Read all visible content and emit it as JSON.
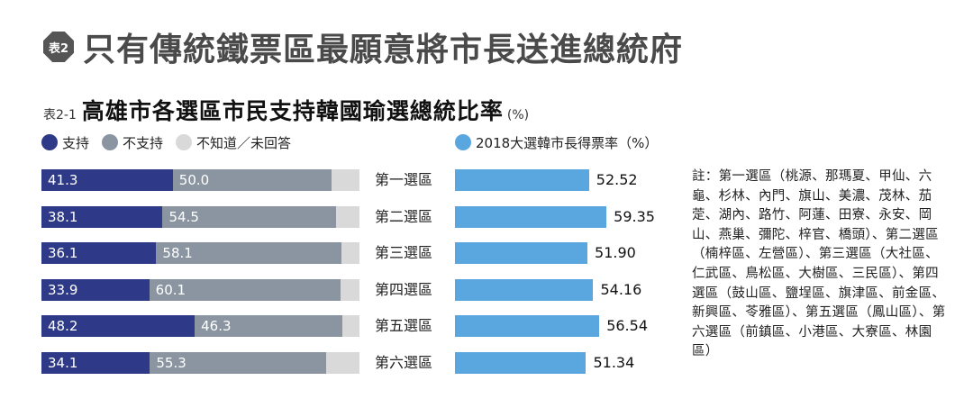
{
  "header": {
    "badge": "表2",
    "title": "只有傳統鐵票區最願意將市長送進總統府"
  },
  "subheader": {
    "tag": "表2-1",
    "title": "高雄市各選區市民支持韓國瑜選總統比率",
    "unit": "(%)"
  },
  "legend": {
    "items": [
      {
        "label": "支持",
        "color": "#2e3a87"
      },
      {
        "label": "不支持",
        "color": "#8a95a1"
      },
      {
        "label": "不知道／未回答",
        "color": "#d9d9d9"
      }
    ],
    "right": {
      "label": "2018大選韓市長得票率（%）",
      "color": "#5aa7e0"
    }
  },
  "chart_data": [
    {
      "type": "bar",
      "stacked": true,
      "orientation": "horizontal",
      "categories": [
        "第一選區",
        "第二選區",
        "第三選區",
        "第四選區",
        "第五選區",
        "第六選區"
      ],
      "series": [
        {
          "name": "支持",
          "color": "#2e3a87",
          "values": [
            41.3,
            38.1,
            36.1,
            33.9,
            48.2,
            34.1
          ]
        },
        {
          "name": "不支持",
          "color": "#8a95a1",
          "values": [
            50.0,
            54.5,
            58.1,
            60.1,
            46.3,
            55.3
          ]
        },
        {
          "name": "不知道／未回答",
          "color": "#d9d9d9",
          "values": [
            8.7,
            7.4,
            5.8,
            6.0,
            5.5,
            10.6
          ]
        }
      ],
      "value_labels": [
        [
          "41.3",
          "50.0"
        ],
        [
          "38.1",
          "54.5"
        ],
        [
          "36.1",
          "58.1"
        ],
        [
          "33.9",
          "60.1"
        ],
        [
          "48.2",
          "46.3"
        ],
        [
          "34.1",
          "55.3"
        ]
      ],
      "xlim": [
        0,
        100
      ]
    },
    {
      "type": "bar",
      "orientation": "horizontal",
      "categories": [
        "第一選區",
        "第二選區",
        "第三選區",
        "第四選區",
        "第五選區",
        "第六選區"
      ],
      "series": [
        {
          "name": "2018大選韓市長得票率（%）",
          "color": "#5aa7e0",
          "values": [
            52.52,
            59.35,
            51.9,
            54.16,
            56.54,
            51.34
          ]
        }
      ],
      "value_labels": [
        "52.52",
        "59.35",
        "51.90",
        "54.16",
        "56.54",
        "51.34"
      ]
    }
  ],
  "note": "註：第一選區（桃源、那瑪夏、甲仙、六龜、杉林、內門、旗山、美濃、茂林、茄萣、湖內、路竹、阿蓮、田寮、永安、岡山、燕巢、彌陀、梓官、橋頭）、第二選區（楠梓區、左營區）、第三選區（大社區、仁武區、鳥松區、大樹區、三民區）、第四選區（鼓山區、鹽埕區、旗津區、前金區、新興區、苓雅區）、第五選區（鳳山區）、第六選區（前鎮區、小港區、大寮區、林園區）"
}
